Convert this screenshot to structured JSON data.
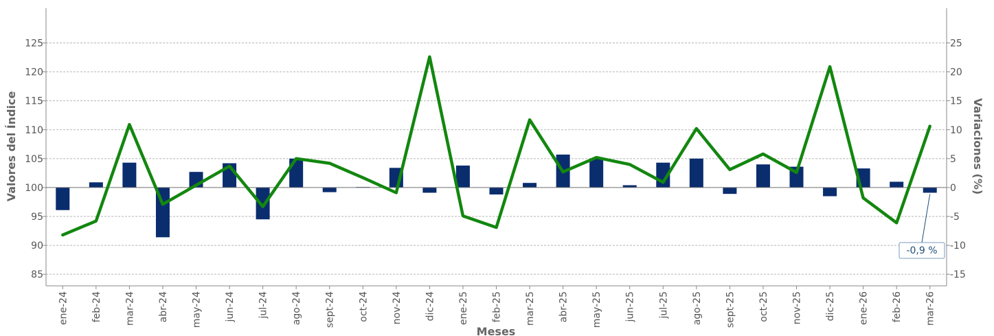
{
  "chart_data": {
    "type": "bar+line",
    "title": "",
    "xlabel": "Meses",
    "ylabel_left": "Valores del Índice",
    "ylabel_right": "Variaciones (%)",
    "categories": [
      "ene-24",
      "feb-24",
      "mar-24",
      "abr-24",
      "may-24",
      "jun-24",
      "jul-24",
      "ago-24",
      "sept-24",
      "oct-24",
      "nov-24",
      "dic-24",
      "ene-25",
      "feb-25",
      "mar-25",
      "abr-25",
      "may-25",
      "jun-25",
      "jul-25",
      "ago-25",
      "sept-25",
      "oct-25",
      "nov-25",
      "dic-25",
      "ene-26",
      "feb-26",
      "mar-26"
    ],
    "left_axis": {
      "min": 83,
      "max": 131,
      "ticks": [
        85,
        90,
        95,
        100,
        105,
        110,
        115,
        120,
        125
      ],
      "baseline": 100
    },
    "right_axis": {
      "min": -17,
      "max": 31,
      "ticks": [
        -15,
        -10,
        -5,
        0,
        5,
        10,
        15,
        20,
        25
      ]
    },
    "series": [
      {
        "kind": "bar",
        "axis": "left",
        "color": "#0a2d6e",
        "values": [
          96.1,
          100.9,
          104.3,
          91.4,
          102.7,
          104.2,
          94.5,
          105.0,
          99.2,
          100.1,
          103.4,
          99.1,
          103.8,
          98.8,
          100.8,
          105.7,
          105.0,
          100.4,
          104.3,
          105.0,
          98.9,
          104.0,
          103.6,
          98.5,
          103.3,
          101.0,
          99.1
        ]
      },
      {
        "kind": "line",
        "axis": "right",
        "color": "#13870f",
        "values": [
          -8.2,
          -5.8,
          10.9,
          -2.9,
          0.4,
          3.7,
          -3.3,
          5.0,
          4.2,
          1.7,
          -0.9,
          22.6,
          -4.9,
          -6.9,
          11.7,
          2.7,
          5.2,
          4.0,
          0.9,
          10.2,
          3.1,
          5.8,
          2.6,
          20.9,
          -1.8,
          -6.1,
          10.6
        ]
      }
    ],
    "annotation": {
      "text": "-0,9 %",
      "category": "mar-26",
      "series": "bar"
    },
    "grid": true,
    "legend": "none"
  }
}
